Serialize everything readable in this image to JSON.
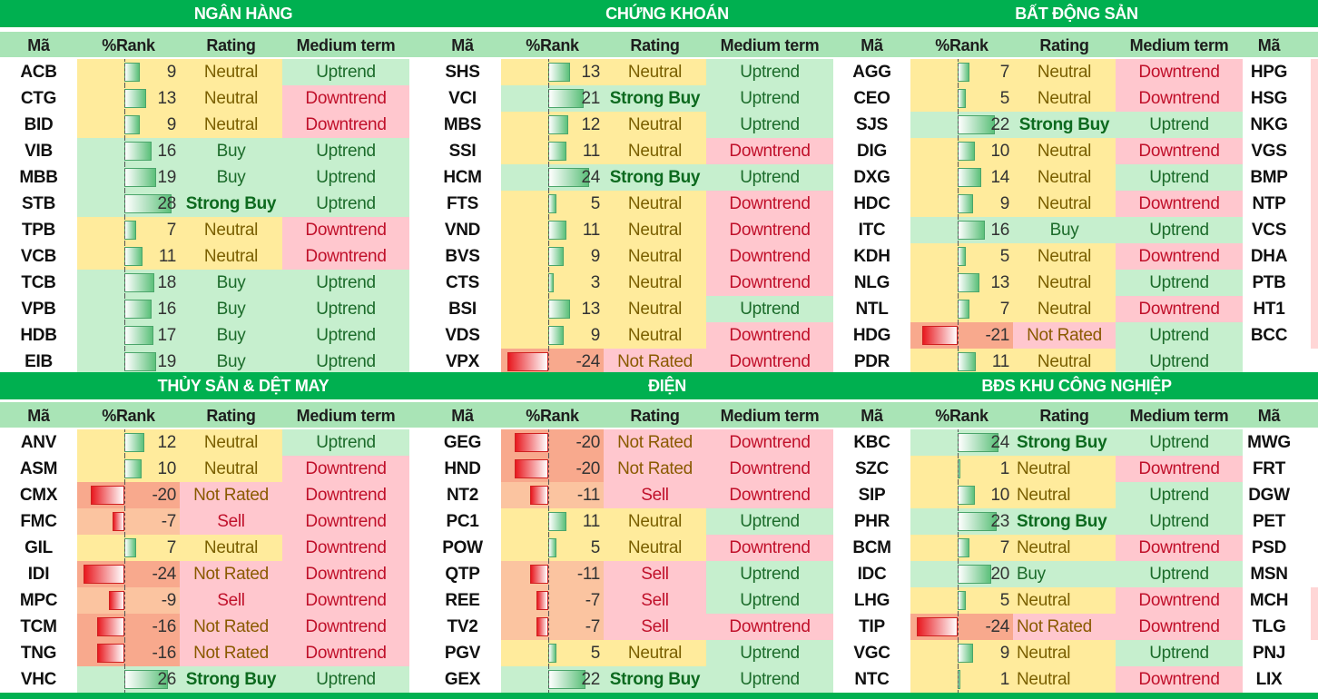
{
  "colors": {
    "banner": "#00b050",
    "header": "#a9e4b6",
    "positive": "#c6efce",
    "neutral": "#ffeb9c",
    "negative": "#ffc7ce",
    "strong_negative": "#f8cbad"
  },
  "headers": {
    "code": "Mã",
    "rank": "%Rank",
    "rating": "Rating",
    "trend": "Medium term"
  },
  "sections": [
    {
      "title": "NGÂN HÀNG",
      "rows": [
        {
          "code": "ACB",
          "rank": 9,
          "rating": "Neutral",
          "trend": "Uptrend"
        },
        {
          "code": "CTG",
          "rank": 13,
          "rating": "Neutral",
          "trend": "Downtrend"
        },
        {
          "code": "BID",
          "rank": 9,
          "rating": "Neutral",
          "trend": "Downtrend"
        },
        {
          "code": "VIB",
          "rank": 16,
          "rating": "Buy",
          "trend": "Uptrend"
        },
        {
          "code": "MBB",
          "rank": 19,
          "rating": "Buy",
          "trend": "Uptrend"
        },
        {
          "code": "STB",
          "rank": 28,
          "rating": "Strong Buy",
          "trend": "Uptrend"
        },
        {
          "code": "TPB",
          "rank": 7,
          "rating": "Neutral",
          "trend": "Downtrend"
        },
        {
          "code": "VCB",
          "rank": 11,
          "rating": "Neutral",
          "trend": "Downtrend"
        },
        {
          "code": "TCB",
          "rank": 18,
          "rating": "Buy",
          "trend": "Uptrend"
        },
        {
          "code": "VPB",
          "rank": 16,
          "rating": "Buy",
          "trend": "Uptrend"
        },
        {
          "code": "HDB",
          "rank": 17,
          "rating": "Buy",
          "trend": "Uptrend"
        },
        {
          "code": "EIB",
          "rank": 19,
          "rating": "Buy",
          "trend": "Uptrend"
        }
      ]
    },
    {
      "title": "CHỨNG KHOÁN",
      "rows": [
        {
          "code": "SHS",
          "rank": 13,
          "rating": "Neutral",
          "trend": "Uptrend"
        },
        {
          "code": "VCI",
          "rank": 21,
          "rating": "Strong Buy",
          "trend": "Uptrend"
        },
        {
          "code": "MBS",
          "rank": 12,
          "rating": "Neutral",
          "trend": "Uptrend"
        },
        {
          "code": "SSI",
          "rank": 11,
          "rating": "Neutral",
          "trend": "Downtrend"
        },
        {
          "code": "HCM",
          "rank": 24,
          "rating": "Strong Buy",
          "trend": "Uptrend"
        },
        {
          "code": "FTS",
          "rank": 5,
          "rating": "Neutral",
          "trend": "Downtrend"
        },
        {
          "code": "VND",
          "rank": 11,
          "rating": "Neutral",
          "trend": "Downtrend"
        },
        {
          "code": "BVS",
          "rank": 9,
          "rating": "Neutral",
          "trend": "Downtrend"
        },
        {
          "code": "CTS",
          "rank": 3,
          "rating": "Neutral",
          "trend": "Downtrend"
        },
        {
          "code": "BSI",
          "rank": 13,
          "rating": "Neutral",
          "trend": "Uptrend"
        },
        {
          "code": "VDS",
          "rank": 9,
          "rating": "Neutral",
          "trend": "Downtrend"
        },
        {
          "code": "VPX",
          "rank": -24,
          "rating": "Not Rated",
          "trend": "Downtrend"
        }
      ]
    },
    {
      "title": "BẤT ĐỘNG SẢN",
      "rows": [
        {
          "code": "AGG",
          "rank": 7,
          "rating": "Neutral",
          "trend": "Downtrend"
        },
        {
          "code": "CEO",
          "rank": 5,
          "rating": "Neutral",
          "trend": "Downtrend"
        },
        {
          "code": "SJS",
          "rank": 22,
          "rating": "Strong Buy",
          "trend": "Uptrend"
        },
        {
          "code": "DIG",
          "rank": 10,
          "rating": "Neutral",
          "trend": "Downtrend"
        },
        {
          "code": "DXG",
          "rank": 14,
          "rating": "Neutral",
          "trend": "Uptrend"
        },
        {
          "code": "HDC",
          "rank": 9,
          "rating": "Neutral",
          "trend": "Downtrend"
        },
        {
          "code": "ITC",
          "rank": 16,
          "rating": "Buy",
          "trend": "Uptrend"
        },
        {
          "code": "KDH",
          "rank": 5,
          "rating": "Neutral",
          "trend": "Downtrend"
        },
        {
          "code": "NLG",
          "rank": 13,
          "rating": "Neutral",
          "trend": "Uptrend"
        },
        {
          "code": "NTL",
          "rank": 7,
          "rating": "Neutral",
          "trend": "Downtrend"
        },
        {
          "code": "HDG",
          "rank": -21,
          "rating": "Not Rated",
          "trend": "Uptrend"
        },
        {
          "code": "PDR",
          "rank": 11,
          "rating": "Neutral",
          "trend": "Uptrend"
        }
      ]
    },
    {
      "title": "THỦY SẢN & DỆT MAY",
      "rows": [
        {
          "code": "ANV",
          "rank": 12,
          "rating": "Neutral",
          "trend": "Uptrend"
        },
        {
          "code": "ASM",
          "rank": 10,
          "rating": "Neutral",
          "trend": "Downtrend"
        },
        {
          "code": "CMX",
          "rank": -20,
          "rating": "Not Rated",
          "trend": "Downtrend"
        },
        {
          "code": "FMC",
          "rank": -7,
          "rating": "Sell",
          "trend": "Downtrend"
        },
        {
          "code": "GIL",
          "rank": 7,
          "rating": "Neutral",
          "trend": "Downtrend"
        },
        {
          "code": "IDI",
          "rank": -24,
          "rating": "Not Rated",
          "trend": "Downtrend"
        },
        {
          "code": "MPC",
          "rank": -9,
          "rating": "Sell",
          "trend": "Downtrend"
        },
        {
          "code": "TCM",
          "rank": -16,
          "rating": "Not Rated",
          "trend": "Downtrend"
        },
        {
          "code": "TNG",
          "rank": -16,
          "rating": "Not Rated",
          "trend": "Downtrend"
        },
        {
          "code": "VHC",
          "rank": 26,
          "rating": "Strong Buy",
          "trend": "Uptrend"
        }
      ]
    },
    {
      "title": "ĐIỆN",
      "rows": [
        {
          "code": "GEG",
          "rank": -20,
          "rating": "Not Rated",
          "trend": "Downtrend"
        },
        {
          "code": "HND",
          "rank": -20,
          "rating": "Not Rated",
          "trend": "Downtrend"
        },
        {
          "code": "NT2",
          "rank": -11,
          "rating": "Sell",
          "trend": "Downtrend"
        },
        {
          "code": "PC1",
          "rank": 11,
          "rating": "Neutral",
          "trend": "Uptrend"
        },
        {
          "code": "POW",
          "rank": 5,
          "rating": "Neutral",
          "trend": "Downtrend"
        },
        {
          "code": "QTP",
          "rank": -11,
          "rating": "Sell",
          "trend": "Uptrend"
        },
        {
          "code": "REE",
          "rank": -7,
          "rating": "Sell",
          "trend": "Uptrend"
        },
        {
          "code": "TV2",
          "rank": -7,
          "rating": "Sell",
          "trend": "Downtrend"
        },
        {
          "code": "PGV",
          "rank": 5,
          "rating": "Neutral",
          "trend": "Uptrend"
        },
        {
          "code": "GEX",
          "rank": 22,
          "rating": "Strong Buy",
          "trend": "Uptrend"
        }
      ]
    },
    {
      "title": "BĐS KHU CÔNG NGHIỆP",
      "rows": [
        {
          "code": "KBC",
          "rank": 24,
          "rating": "Strong Buy",
          "trend": "Uptrend"
        },
        {
          "code": "SZC",
          "rank": 1,
          "rating": "Neutral",
          "trend": "Downtrend"
        },
        {
          "code": "SIP",
          "rank": 10,
          "rating": "Neutral",
          "trend": "Uptrend"
        },
        {
          "code": "PHR",
          "rank": 23,
          "rating": "Strong Buy",
          "trend": "Uptrend"
        },
        {
          "code": "BCM",
          "rank": 7,
          "rating": "Neutral",
          "trend": "Downtrend"
        },
        {
          "code": "IDC",
          "rank": 20,
          "rating": "Buy",
          "trend": "Uptrend"
        },
        {
          "code": "LHG",
          "rank": 5,
          "rating": "Neutral",
          "trend": "Downtrend"
        },
        {
          "code": "TIP",
          "rank": -24,
          "rating": "Not Rated",
          "trend": "Downtrend"
        },
        {
          "code": "VGC",
          "rank": 9,
          "rating": "Neutral",
          "trend": "Uptrend"
        },
        {
          "code": "NTC",
          "rank": 1,
          "rating": "Neutral",
          "trend": "Downtrend"
        }
      ]
    }
  ],
  "extra_columns": [
    {
      "code_header": "Mã",
      "codes": [
        "HPG",
        "HSG",
        "NKG",
        "VGS",
        "BMP",
        "NTP",
        "VCS",
        "DHA",
        "PTB",
        "HT1",
        "BCC",
        ""
      ]
    },
    {
      "code_header": "Mã",
      "codes": [
        "MWG",
        "FRT",
        "DGW",
        "PET",
        "PSD",
        "MSN",
        "MCH",
        "TLG",
        "PNJ",
        "LIX"
      ]
    }
  ]
}
